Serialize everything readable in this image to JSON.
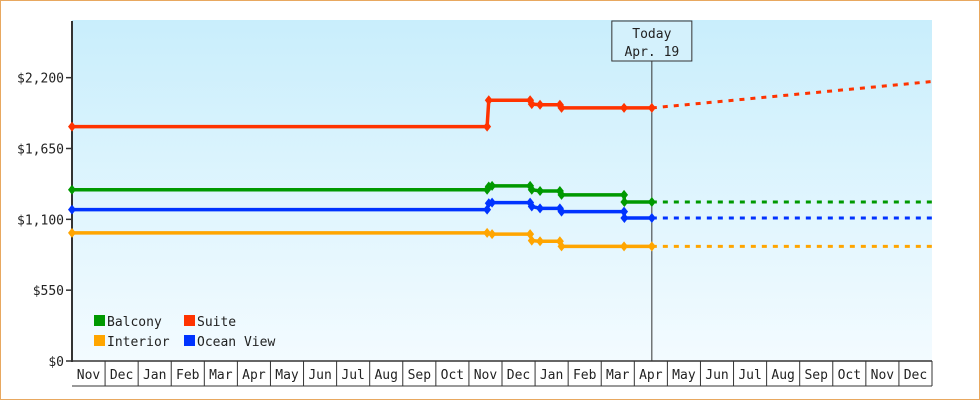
{
  "chart_data": {
    "type": "line",
    "title": "",
    "xlabel": "",
    "ylabel": "",
    "ylim": [
      0,
      2640
    ],
    "y_ticks": [
      {
        "value": 0,
        "label": "$0"
      },
      {
        "value": 550,
        "label": "$550"
      },
      {
        "value": 1100,
        "label": "$1,100"
      },
      {
        "value": 1650,
        "label": "$1,650"
      },
      {
        "value": 2200,
        "label": "$2,200"
      }
    ],
    "x_unit": "months since start of first Nov",
    "xlim": [
      0,
      26
    ],
    "months": [
      "Nov",
      "Dec",
      "Jan",
      "Feb",
      "Mar",
      "Apr",
      "May",
      "Jun",
      "Jul",
      "Aug",
      "Sep",
      "Oct",
      "Nov",
      "Dec",
      "Jan",
      "Feb",
      "Mar",
      "Apr",
      "May",
      "Jun",
      "Jul",
      "Aug",
      "Sep",
      "Oct",
      "Nov",
      "Dec"
    ],
    "today": {
      "x": 17.53,
      "label_line1": "Today",
      "label_line2": "Apr. 19"
    },
    "legend_position": "bottom-left",
    "series": [
      {
        "name": "Balcony",
        "color": "#009900",
        "points": [
          [
            0,
            1330
          ],
          [
            12.55,
            1330
          ],
          [
            12.6,
            1355
          ],
          [
            12.7,
            1360
          ],
          [
            13.85,
            1360
          ],
          [
            13.9,
            1330
          ],
          [
            14.15,
            1320
          ],
          [
            14.75,
            1320
          ],
          [
            14.8,
            1290
          ],
          [
            16.69,
            1290
          ],
          [
            16.7,
            1235
          ],
          [
            17.53,
            1235
          ]
        ],
        "forecast": [
          [
            17.53,
            1235
          ],
          [
            26,
            1235
          ]
        ]
      },
      {
        "name": "Suite",
        "color": "#ff3300",
        "points": [
          [
            0,
            1820
          ],
          [
            12.55,
            1820
          ],
          [
            12.6,
            2025
          ],
          [
            13.85,
            2025
          ],
          [
            13.9,
            1995
          ],
          [
            14.15,
            1990
          ],
          [
            14.75,
            1990
          ],
          [
            14.8,
            1965
          ],
          [
            16.69,
            1965
          ],
          [
            17.53,
            1965
          ]
        ],
        "forecast": [
          [
            17.53,
            1965
          ],
          [
            26,
            2170
          ]
        ]
      },
      {
        "name": "Interior",
        "color": "#ffa500",
        "points": [
          [
            0,
            995
          ],
          [
            12.55,
            995
          ],
          [
            12.7,
            985
          ],
          [
            13.85,
            985
          ],
          [
            13.9,
            935
          ],
          [
            14.15,
            930
          ],
          [
            14.75,
            930
          ],
          [
            14.8,
            890
          ],
          [
            16.69,
            890
          ],
          [
            17.53,
            890
          ]
        ],
        "forecast": [
          [
            17.53,
            890
          ],
          [
            26,
            890
          ]
        ]
      },
      {
        "name": "Ocean View",
        "color": "#0033ff",
        "points": [
          [
            0,
            1175
          ],
          [
            12.55,
            1175
          ],
          [
            12.6,
            1225
          ],
          [
            12.7,
            1230
          ],
          [
            13.85,
            1230
          ],
          [
            13.9,
            1200
          ],
          [
            14.15,
            1185
          ],
          [
            14.75,
            1185
          ],
          [
            14.8,
            1160
          ],
          [
            16.69,
            1160
          ],
          [
            16.7,
            1110
          ],
          [
            17.53,
            1110
          ]
        ],
        "forecast": [
          [
            17.53,
            1110
          ],
          [
            26,
            1110
          ]
        ]
      }
    ]
  }
}
